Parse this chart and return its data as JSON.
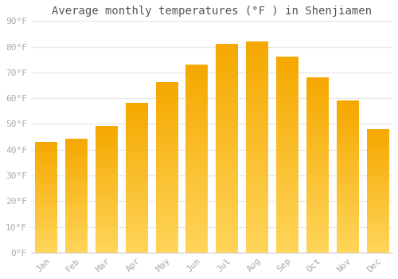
{
  "months": [
    "Jan",
    "Feb",
    "Mar",
    "Apr",
    "May",
    "Jun",
    "Jul",
    "Aug",
    "Sep",
    "Oct",
    "Nov",
    "Dec"
  ],
  "values": [
    43,
    44,
    49,
    58,
    66,
    73,
    81,
    82,
    76,
    68,
    59,
    48
  ],
  "bar_color_bottom": "#FFD55A",
  "bar_color_top": "#F5A800",
  "title": "Average monthly temperatures (°F ) in Shenjiamen",
  "ylim": [
    0,
    90
  ],
  "yticks": [
    0,
    10,
    20,
    30,
    40,
    50,
    60,
    70,
    80,
    90
  ],
  "ytick_labels": [
    "0°F",
    "10°F",
    "20°F",
    "30°F",
    "40°F",
    "50°F",
    "60°F",
    "70°F",
    "80°F",
    "90°F"
  ],
  "background_color": "#ffffff",
  "grid_color": "#e8e8e8",
  "title_fontsize": 10,
  "tick_fontsize": 8,
  "bar_width": 0.72
}
